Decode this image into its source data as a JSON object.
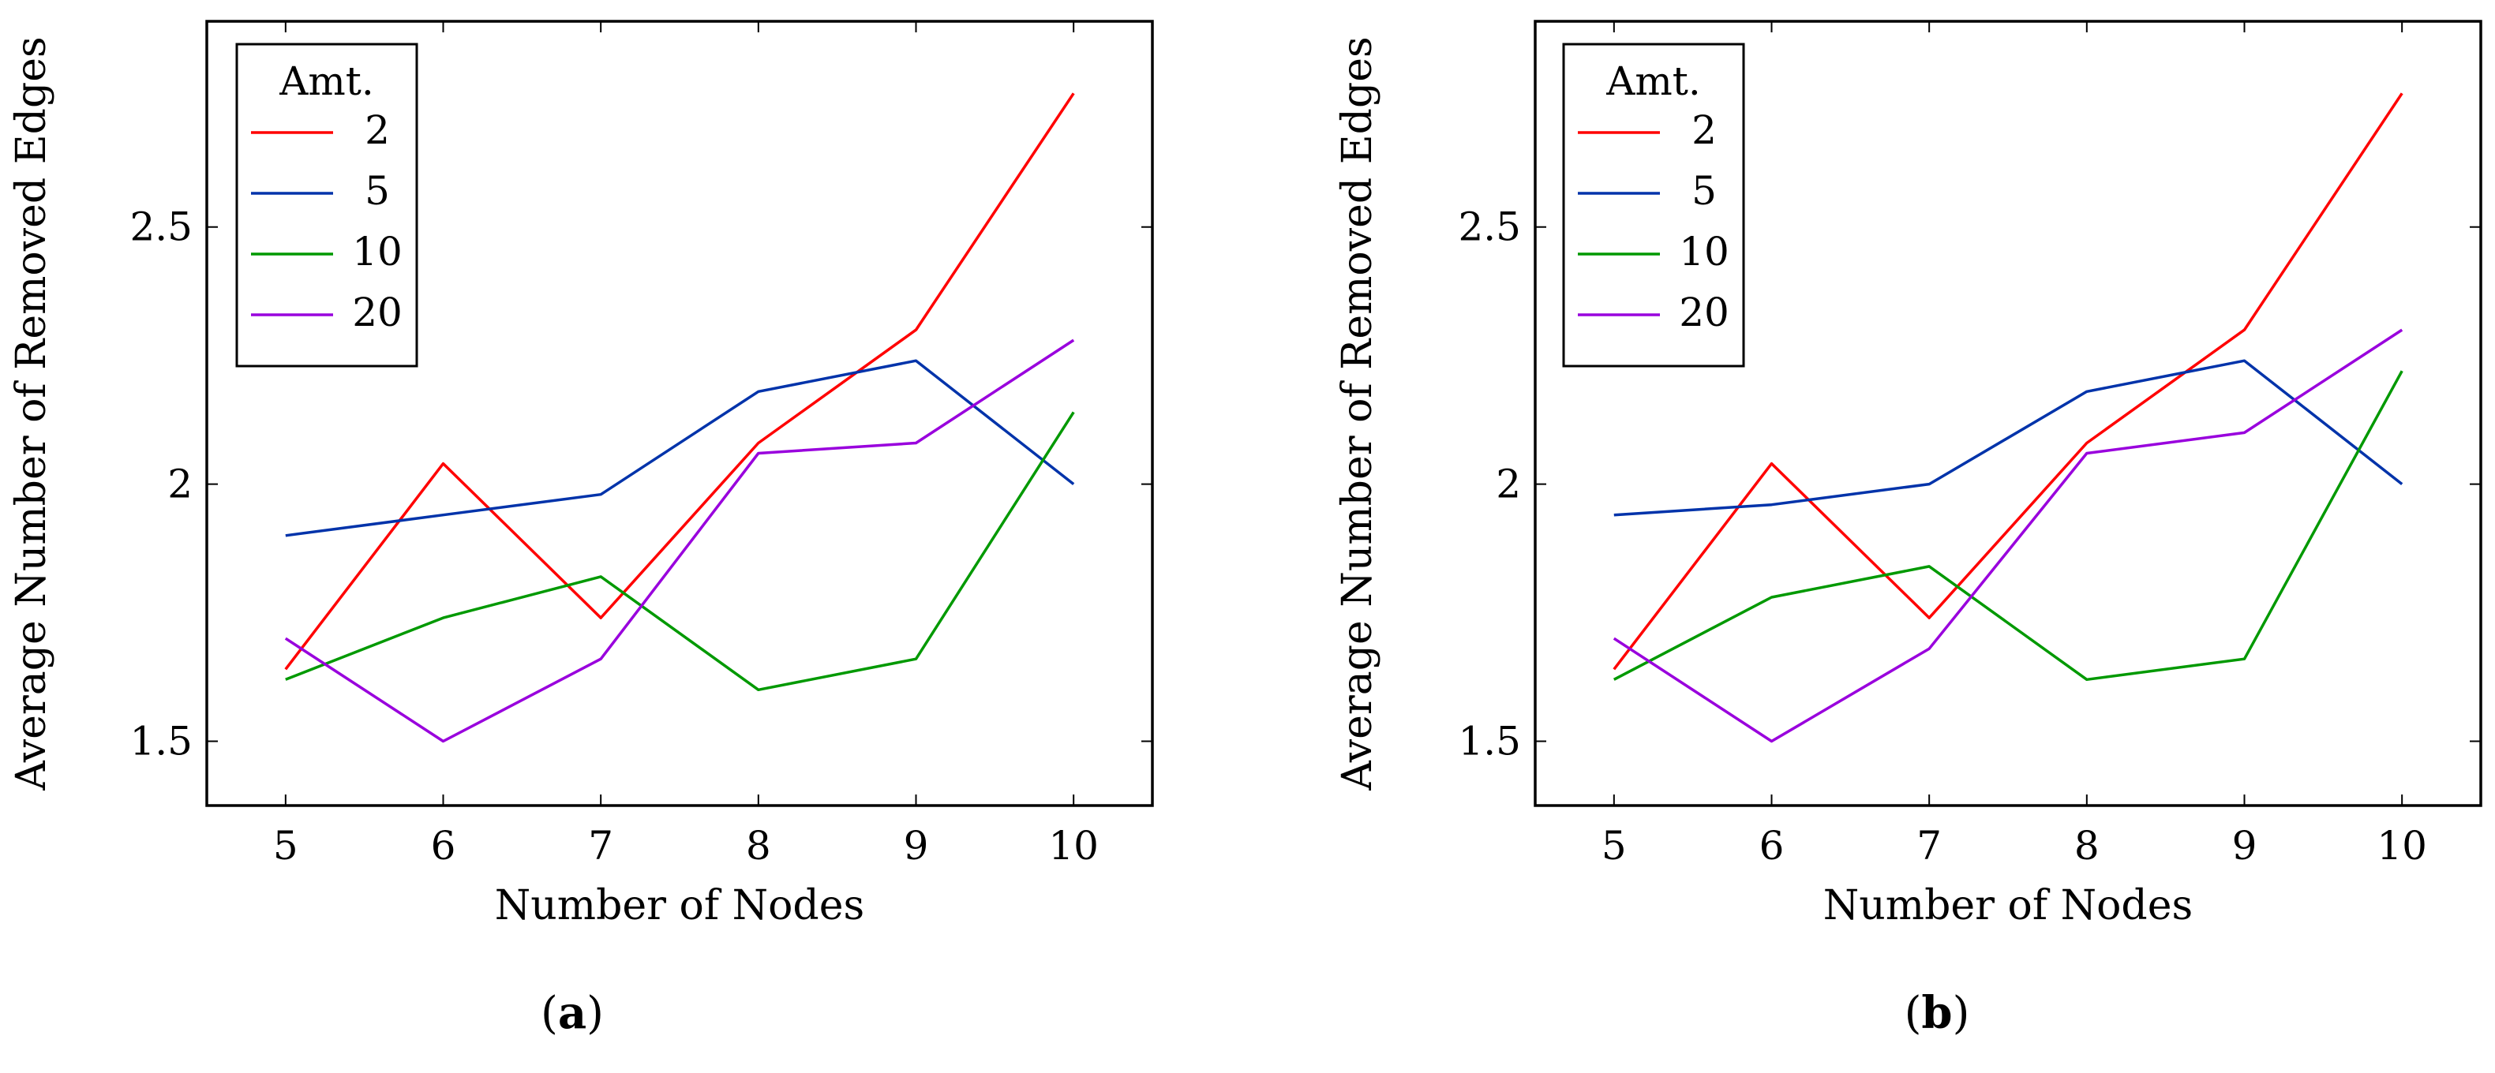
{
  "chart_data": [
    {
      "type": "line",
      "caption": "a",
      "xlabel": "Number of Nodes",
      "ylabel": "Average Number of Removed Edges",
      "x": [
        5,
        6,
        7,
        8,
        9,
        10
      ],
      "xlim": [
        4.5,
        10.5
      ],
      "ylim": [
        1.375,
        2.9
      ],
      "xticks": [
        "5",
        "6",
        "7",
        "8",
        "9",
        "10"
      ],
      "yticks": [
        {
          "value": 1.5,
          "label": "1.5"
        },
        {
          "value": 2.0,
          "label": "2"
        },
        {
          "value": 2.5,
          "label": "2.5"
        }
      ],
      "legend_title": "Amt.",
      "legend_position": "top-left",
      "grid": false,
      "series": [
        {
          "name": "2",
          "color": "#ff0000",
          "values": [
            1.64,
            2.04,
            1.74,
            2.08,
            2.3,
            2.76
          ]
        },
        {
          "name": "5",
          "color": "#0033aa",
          "values": [
            1.9,
            1.94,
            1.98,
            2.18,
            2.24,
            2.0
          ]
        },
        {
          "name": "10",
          "color": "#009900",
          "values": [
            1.62,
            1.74,
            1.82,
            1.6,
            1.66,
            2.14
          ]
        },
        {
          "name": "20",
          "color": "#9900dd",
          "values": [
            1.7,
            1.5,
            1.66,
            2.06,
            2.08,
            2.28
          ]
        }
      ]
    },
    {
      "type": "line",
      "caption": "b",
      "xlabel": "Number of Nodes",
      "ylabel": "Average Number of Removed Edges",
      "x": [
        5,
        6,
        7,
        8,
        9,
        10
      ],
      "xlim": [
        4.5,
        10.5
      ],
      "ylim": [
        1.375,
        2.9
      ],
      "xticks": [
        "5",
        "6",
        "7",
        "8",
        "9",
        "10"
      ],
      "yticks": [
        {
          "value": 1.5,
          "label": "1.5"
        },
        {
          "value": 2.0,
          "label": "2"
        },
        {
          "value": 2.5,
          "label": "2.5"
        }
      ],
      "legend_title": "Amt.",
      "legend_position": "top-left",
      "grid": false,
      "series": [
        {
          "name": "2",
          "color": "#ff0000",
          "values": [
            1.64,
            2.04,
            1.74,
            2.08,
            2.3,
            2.76
          ]
        },
        {
          "name": "5",
          "color": "#0033aa",
          "values": [
            1.94,
            1.96,
            2.0,
            2.18,
            2.24,
            2.0
          ]
        },
        {
          "name": "10",
          "color": "#009900",
          "values": [
            1.62,
            1.78,
            1.84,
            1.62,
            1.66,
            2.22
          ]
        },
        {
          "name": "20",
          "color": "#9900dd",
          "values": [
            1.7,
            1.5,
            1.68,
            2.06,
            2.1,
            2.3
          ]
        }
      ]
    }
  ],
  "captions": [
    {
      "open": "(",
      "letter": "a",
      "close": ")"
    },
    {
      "open": "(",
      "letter": "b",
      "close": ")"
    }
  ]
}
